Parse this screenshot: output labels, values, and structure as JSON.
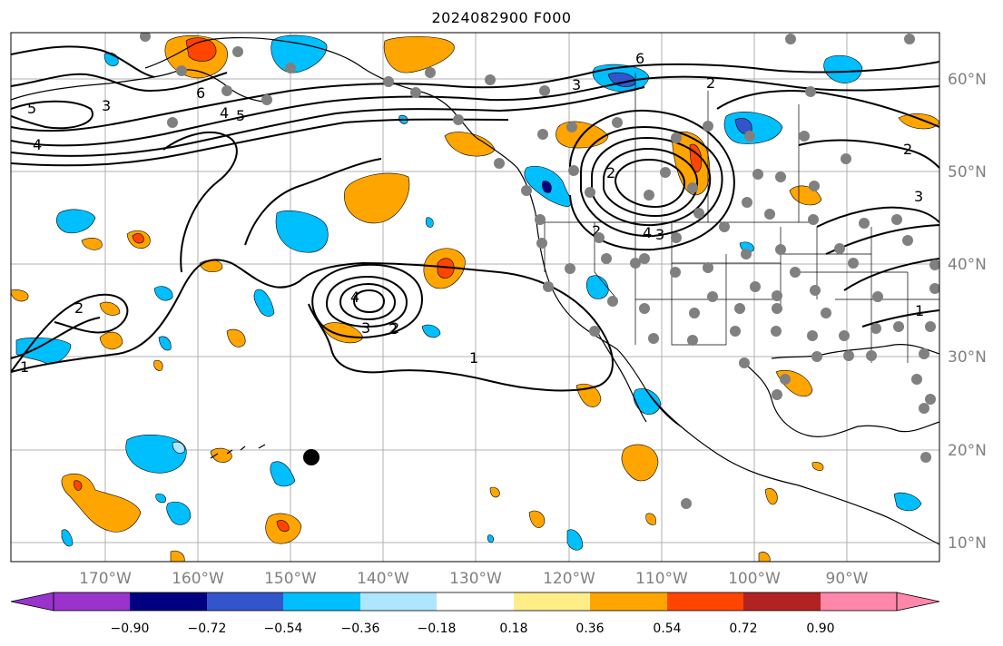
{
  "title": "2024082900 F000",
  "map": {
    "lon_labels": [
      "170°W",
      "160°W",
      "150°W",
      "140°W",
      "130°W",
      "120°W",
      "110°W",
      "100°W",
      "90°W"
    ],
    "lat_labels": [
      "60°N",
      "50°N",
      "40°N",
      "30°N",
      "20°N",
      "10°N"
    ],
    "contour_labels": [
      "5",
      "4",
      "3",
      "6",
      "4",
      "2",
      "2",
      "6",
      "5",
      "3",
      "2",
      "2",
      "2",
      "4",
      "3",
      "2",
      "1",
      "3",
      "1",
      "4",
      "2",
      "3",
      "1"
    ],
    "colors": {
      "ocean_land_bg": "#ffffff",
      "coast": "#000000",
      "grid": "#b0b0b0",
      "station_dot": "#808080",
      "marker": "#000000"
    }
  },
  "colorbar": {
    "colors": [
      "#9933cc",
      "#000080",
      "#3355cc",
      "#00bfff",
      "#aee6ff",
      "#ffffff",
      "#ffee88",
      "#ffa500",
      "#ff4500",
      "#b22222",
      "#ff88aa"
    ],
    "tick_labels": [
      "−0.90",
      "−0.72",
      "−0.54",
      "−0.36",
      "−0.18",
      "0.18",
      "0.36",
      "0.54",
      "0.72",
      "0.90"
    ]
  }
}
